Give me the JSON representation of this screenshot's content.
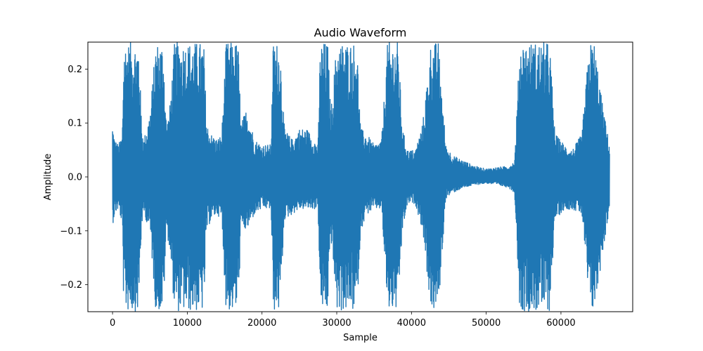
{
  "chart_data": {
    "type": "line",
    "title": "Audio Waveform",
    "xlabel": "Sample",
    "ylabel": "Amplitude",
    "xlim": [
      -3300,
      69600
    ],
    "ylim": [
      -0.25,
      0.25
    ],
    "xticks": [
      0,
      10000,
      20000,
      30000,
      40000,
      50000,
      60000
    ],
    "xtick_labels": [
      "0",
      "10000",
      "20000",
      "30000",
      "40000",
      "50000",
      "60000"
    ],
    "yticks": [
      -0.2,
      -0.1,
      0.0,
      0.1,
      0.2
    ],
    "ytick_labels": [
      "−0.2",
      "−0.1",
      "0.0",
      "0.1",
      "0.2"
    ],
    "grid": false,
    "color": "#1f77b4",
    "series": [
      {
        "name": "",
        "envelope_x": [
          0,
          300,
          800,
          1300,
          1500,
          2000,
          2500,
          3000,
          3500,
          3900,
          4200,
          5000,
          5800,
          6200,
          6800,
          7200,
          7600,
          8300,
          8800,
          9500,
          10200,
          10800,
          11500,
          12200,
          12600,
          13200,
          14000,
          14600,
          15200,
          16000,
          16800,
          17200,
          18000,
          19000,
          20000,
          21200,
          21500,
          22400,
          23000,
          24000,
          25000,
          26000,
          27500,
          27800,
          28800,
          29200,
          30000,
          31000,
          32000,
          32700,
          33200,
          34000,
          35000,
          36000,
          36800,
          37500,
          38200,
          38800,
          39500,
          40500,
          41500,
          42600,
          43600,
          44600,
          45500,
          47000,
          48500,
          50000,
          51500,
          53000,
          53800,
          54500,
          55500,
          56500,
          57500,
          58500,
          59200,
          60500,
          61500,
          62800,
          63800,
          64500,
          65500,
          66500
        ],
        "upper": [
          0.1,
          0.07,
          0.06,
          0.08,
          0.25,
          0.25,
          0.25,
          0.25,
          0.25,
          0.1,
          0.07,
          0.12,
          0.25,
          0.25,
          0.25,
          0.1,
          0.12,
          0.25,
          0.25,
          0.25,
          0.25,
          0.25,
          0.25,
          0.25,
          0.1,
          0.08,
          0.07,
          0.08,
          0.25,
          0.25,
          0.25,
          0.1,
          0.13,
          0.07,
          0.06,
          0.06,
          0.25,
          0.25,
          0.09,
          0.07,
          0.09,
          0.09,
          0.06,
          0.25,
          0.25,
          0.12,
          0.25,
          0.25,
          0.25,
          0.25,
          0.09,
          0.08,
          0.06,
          0.07,
          0.25,
          0.25,
          0.25,
          0.09,
          0.05,
          0.05,
          0.1,
          0.25,
          0.25,
          0.06,
          0.04,
          0.03,
          0.02,
          0.015,
          0.018,
          0.02,
          0.03,
          0.25,
          0.25,
          0.25,
          0.25,
          0.25,
          0.08,
          0.06,
          0.05,
          0.08,
          0.25,
          0.25,
          0.14,
          0.06
        ],
        "lower": [
          -0.09,
          -0.07,
          -0.06,
          -0.09,
          -0.25,
          -0.25,
          -0.25,
          -0.25,
          -0.25,
          -0.09,
          -0.07,
          -0.1,
          -0.25,
          -0.25,
          -0.25,
          -0.1,
          -0.13,
          -0.25,
          -0.25,
          -0.25,
          -0.25,
          -0.25,
          -0.25,
          -0.25,
          -0.1,
          -0.08,
          -0.07,
          -0.08,
          -0.25,
          -0.25,
          -0.25,
          -0.1,
          -0.1,
          -0.07,
          -0.06,
          -0.06,
          -0.25,
          -0.25,
          -0.08,
          -0.07,
          -0.06,
          -0.06,
          -0.06,
          -0.25,
          -0.25,
          -0.11,
          -0.25,
          -0.25,
          -0.25,
          -0.25,
          -0.1,
          -0.07,
          -0.06,
          -0.06,
          -0.25,
          -0.25,
          -0.25,
          -0.1,
          -0.05,
          -0.05,
          -0.1,
          -0.25,
          -0.25,
          -0.04,
          -0.03,
          -0.02,
          -0.015,
          -0.012,
          -0.015,
          -0.02,
          -0.03,
          -0.25,
          -0.25,
          -0.25,
          -0.25,
          -0.25,
          -0.08,
          -0.06,
          -0.06,
          -0.07,
          -0.25,
          -0.25,
          -0.15,
          -0.06
        ]
      }
    ]
  }
}
